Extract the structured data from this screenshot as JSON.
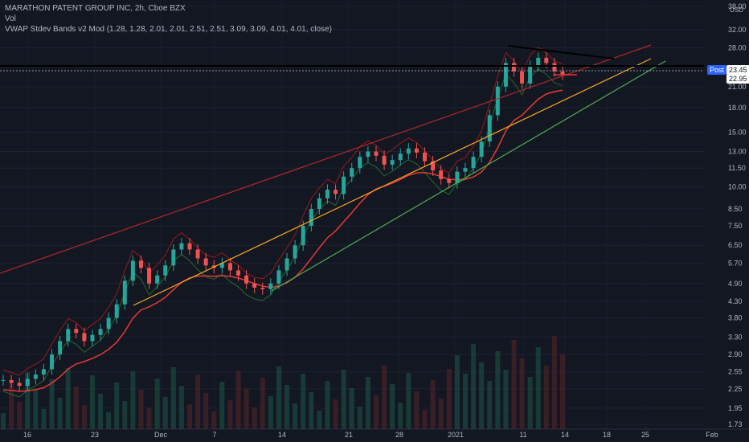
{
  "legend": {
    "symbol": "MARATHON PATENT GROUP INC, 2h, Cboe BZX",
    "vol": "Vol",
    "indicator": "VWAP Stdev Bands v2 Mod (1.28, 1.28, 2.01, 2.01, 2.51, 2.51, 3.09, 3.09, 4.01, 4.01, close)"
  },
  "axis": {
    "currency": "USD",
    "post_label": "Post",
    "price_tag_1": "23.45",
    "price_tag_2": "22.95"
  },
  "chart_data": {
    "type": "candlestick",
    "y_scale": "log",
    "y_ticks": [
      "38.00",
      "32.00",
      "28.00",
      "21.00",
      "18.00",
      "15.00",
      "13.00",
      "11.50",
      "10.00",
      "8.50",
      "7.50",
      "6.50",
      "5.70",
      "4.90",
      "4.30",
      "3.80",
      "3.30",
      "2.90",
      "2.55",
      "2.25",
      "1.95",
      "1.73"
    ],
    "x_ticks": [
      "16",
      "23",
      "Dec",
      "7",
      "14",
      "21",
      "28",
      "2021",
      "11",
      "14",
      "18",
      "25",
      "Feb"
    ],
    "close_path": [
      2.4,
      2.35,
      2.3,
      2.42,
      2.5,
      2.6,
      2.9,
      3.2,
      3.5,
      3.4,
      3.2,
      3.35,
      3.5,
      3.8,
      4.2,
      5.0,
      5.8,
      5.5,
      4.9,
      5.2,
      5.6,
      6.3,
      6.6,
      6.3,
      5.9,
      5.6,
      5.5,
      5.7,
      5.4,
      5.2,
      4.9,
      4.75,
      4.7,
      4.9,
      5.4,
      5.9,
      6.5,
      7.5,
      8.5,
      9.2,
      9.8,
      9.5,
      10.8,
      11.5,
      12.5,
      13.0,
      12.6,
      11.8,
      12.2,
      12.8,
      13.3,
      12.9,
      12.1,
      11.3,
      10.6,
      10.3,
      11.2,
      11.5,
      12.5,
      14.0,
      17.0,
      21.0,
      25.0,
      23.5,
      21.5,
      24.5,
      26.0,
      25.0,
      23.5,
      23.0
    ],
    "volume_bars": 70,
    "price_levels": {
      "post": 23.45,
      "last": 22.95
    },
    "colors": {
      "up": "#26a69a",
      "down": "#ef5350",
      "trend_red": "#b02828",
      "trend_orange": "#f5a623",
      "trend_green": "#4caf50",
      "vwap": "#e53935",
      "resistance": "#000000"
    }
  }
}
